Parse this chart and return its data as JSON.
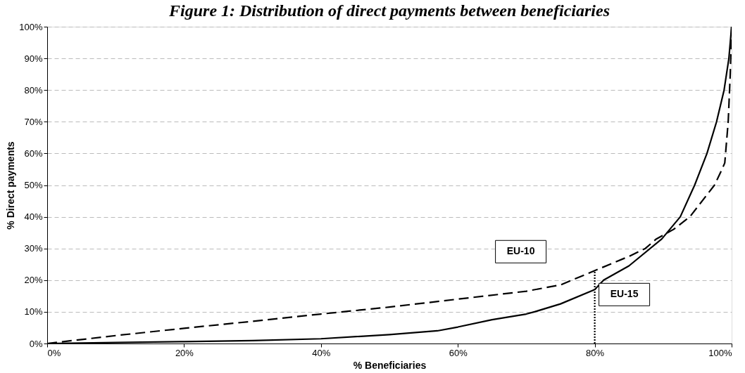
{
  "chart_data": {
    "type": "line",
    "title": "Figure 1:  Distribution of direct payments between beneficiaries",
    "xlabel": "% Beneficiaries",
    "ylabel": "% Direct payments",
    "xlim": [
      0,
      100
    ],
    "ylim": [
      0,
      100
    ],
    "xticks": [
      {
        "value": 0,
        "label": "0%"
      },
      {
        "value": 20,
        "label": "20%"
      },
      {
        "value": 40,
        "label": "40%"
      },
      {
        "value": 60,
        "label": "60%"
      },
      {
        "value": 80,
        "label": "80%"
      },
      {
        "value": 100,
        "label": "100%"
      }
    ],
    "yticks": [
      {
        "value": 0,
        "label": "0%"
      },
      {
        "value": 10,
        "label": "10%"
      },
      {
        "value": 20,
        "label": "20%"
      },
      {
        "value": 30,
        "label": "30%"
      },
      {
        "value": 40,
        "label": "40%"
      },
      {
        "value": 50,
        "label": "50%"
      },
      {
        "value": 60,
        "label": "60%"
      },
      {
        "value": 70,
        "label": "70%"
      },
      {
        "value": 80,
        "label": "80%"
      },
      {
        "value": 90,
        "label": "90%"
      },
      {
        "value": 100,
        "label": "100%"
      }
    ],
    "grid": "y",
    "series": [
      {
        "name": "EU-15",
        "color": "#000000",
        "line_style": "solid",
        "x": [
          0,
          10,
          20,
          30,
          40,
          50,
          57,
          60,
          65,
          70,
          71.2,
          75,
          80,
          81.3,
          85,
          89.8,
          92.5,
          94.6,
          96.4,
          97.8,
          98.9,
          99.6,
          100
        ],
        "values": [
          0,
          0.3,
          0.6,
          0.9,
          1.5,
          2.8,
          4,
          5.2,
          7.5,
          9.3,
          10,
          12.5,
          17,
          20,
          24.5,
          33,
          40,
          50,
          60,
          70,
          80,
          90,
          100
        ]
      },
      {
        "name": "EU-10",
        "color": "#000000",
        "line_style": "dashed",
        "x": [
          0,
          10,
          20,
          30,
          40,
          50,
          60,
          70,
          75,
          80,
          85,
          87.4,
          89,
          91.5,
          93.9,
          97.5,
          98.6,
          99,
          99.5,
          99.8,
          100
        ],
        "values": [
          0,
          2.5,
          4.8,
          7,
          9.3,
          11.5,
          14,
          16.5,
          18.5,
          23,
          27.5,
          30,
          33,
          36,
          40,
          50,
          55,
          57,
          70,
          85,
          100
        ]
      },
      {
        "color": "#000000",
        "line_style": "dotted",
        "x": [
          80,
          80
        ],
        "values": [
          0,
          23
        ]
      }
    ]
  }
}
